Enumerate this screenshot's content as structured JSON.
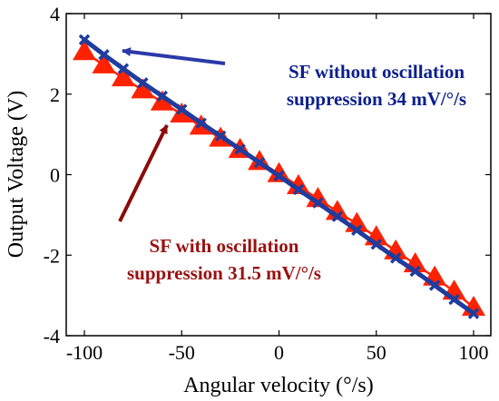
{
  "chart_data": {
    "type": "line",
    "title": "",
    "xlabel": "Angular velocity (°/s)",
    "ylabel": "Output Voltage (V)",
    "xlim": [
      -100,
      100
    ],
    "ylim": [
      -4,
      4
    ],
    "xticks": [
      -100,
      -50,
      0,
      50,
      100
    ],
    "yticks": [
      -4,
      -2,
      0,
      2,
      4
    ],
    "grid": false,
    "x": [
      -100,
      -90,
      -80,
      -70,
      -60,
      -50,
      -40,
      -30,
      -20,
      -10,
      0,
      10,
      20,
      30,
      40,
      50,
      60,
      70,
      80,
      90,
      100
    ],
    "series": [
      {
        "marker": "triangle",
        "color": "#ff2200",
        "values": [
          3.05,
          2.72,
          2.4,
          2.1,
          1.8,
          1.5,
          1.2,
          0.9,
          0.62,
          0.32,
          0.02,
          -0.28,
          -0.6,
          -0.92,
          -1.22,
          -1.55,
          -1.9,
          -2.22,
          -2.55,
          -2.9,
          -3.3
        ]
      },
      {
        "marker": "x",
        "color": "#1f3c9e",
        "values": [
          3.35,
          2.98,
          2.63,
          2.28,
          1.95,
          1.62,
          1.28,
          0.96,
          0.63,
          0.3,
          -0.03,
          -0.37,
          -0.7,
          -1.04,
          -1.38,
          -1.73,
          -2.07,
          -2.4,
          -2.75,
          -3.1,
          -3.45
        ]
      }
    ],
    "annotations": [
      {
        "line1": "SF without oscillation",
        "line2": "suppression 34 mV/°/s",
        "color": "#0b1f8c",
        "arrow_color": "#2a3aa8"
      },
      {
        "line1": "SF with oscillation",
        "line2": "suppression 31.5 mV/°/s",
        "color": "#9b1010",
        "arrow_color": "#8b0b0b"
      }
    ]
  }
}
